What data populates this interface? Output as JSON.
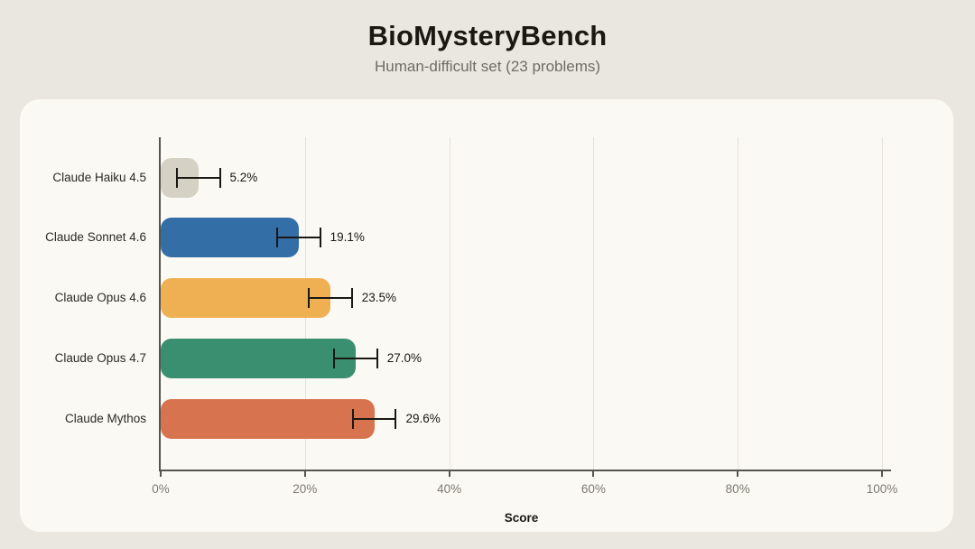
{
  "header": {
    "title": "BioMysteryBench",
    "subtitle": "Human-difficult set (23 problems)"
  },
  "chart_data": {
    "type": "bar",
    "orientation": "horizontal",
    "title": "BioMysteryBench",
    "subtitle": "Human-difficult set (23 problems)",
    "categories": [
      "Claude Haiku 4.5",
      "Claude Sonnet 4.6",
      "Claude Opus 4.6",
      "Claude Opus 4.7",
      "Claude Mythos"
    ],
    "values": [
      5.2,
      19.1,
      23.5,
      27.0,
      29.6
    ],
    "value_labels": [
      "5.2%",
      "19.1%",
      "23.5%",
      "27.0%",
      "29.6%"
    ],
    "errors": [
      3.0,
      3.0,
      3.0,
      3.0,
      3.0
    ],
    "bar_colors": [
      "#D5D2C5",
      "#336FA6",
      "#EFB054",
      "#3A8F70",
      "#D7744F"
    ],
    "xlabel": "Score",
    "ylabel": "",
    "xlim": [
      0,
      100
    ],
    "x_ticks": [
      0,
      20,
      40,
      60,
      80,
      100
    ],
    "x_tick_labels": [
      "0%",
      "20%",
      "40%",
      "60%",
      "80%",
      "100%"
    ],
    "grid": true,
    "legend": false
  },
  "colors": {
    "page_background": "#EAE7E0",
    "card_background": "#FAF9F3",
    "axis": "#56544E",
    "gridline": "#E5E2DA",
    "title_text": "#191813",
    "subtitle_text": "#6E6D64",
    "tick_text": "#7C7A71",
    "error_bar": "#191813"
  }
}
